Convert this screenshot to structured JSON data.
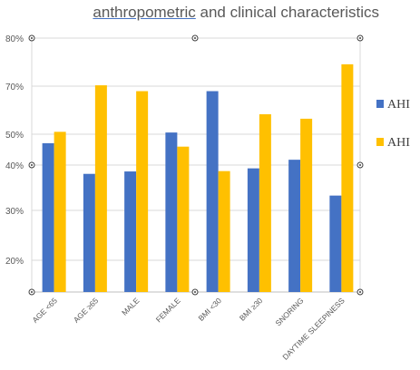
{
  "chart_data": {
    "type": "bar",
    "title_part1": "anthropometric",
    "title_part2": " and clinical characteristics",
    "categories": [
      "AGE <65",
      "AGE ≥65",
      "MALE",
      "FEMALE",
      "BMI <30",
      "BMI ≥30",
      "SNORING",
      "DAYTIME SLEEPINESS"
    ],
    "y_tick_labels": [
      "80%",
      "70%",
      "50%",
      "40%",
      "30%",
      "20%"
    ],
    "series": [
      {
        "name": "AHI",
        "color": "#4472c4",
        "values": [
          49.5,
          40.6,
          41.3,
          52.6,
          64.6,
          42.2,
          44.7,
          34.3
        ]
      },
      {
        "name": "AHI",
        "color": "#ffc000",
        "values": [
          52.8,
          66.3,
          64.6,
          48.5,
          41.4,
          57.9,
          56.6,
          72.4
        ]
      }
    ],
    "ylim": [
      10,
      82
    ],
    "grid": true,
    "legend_position": "right"
  }
}
